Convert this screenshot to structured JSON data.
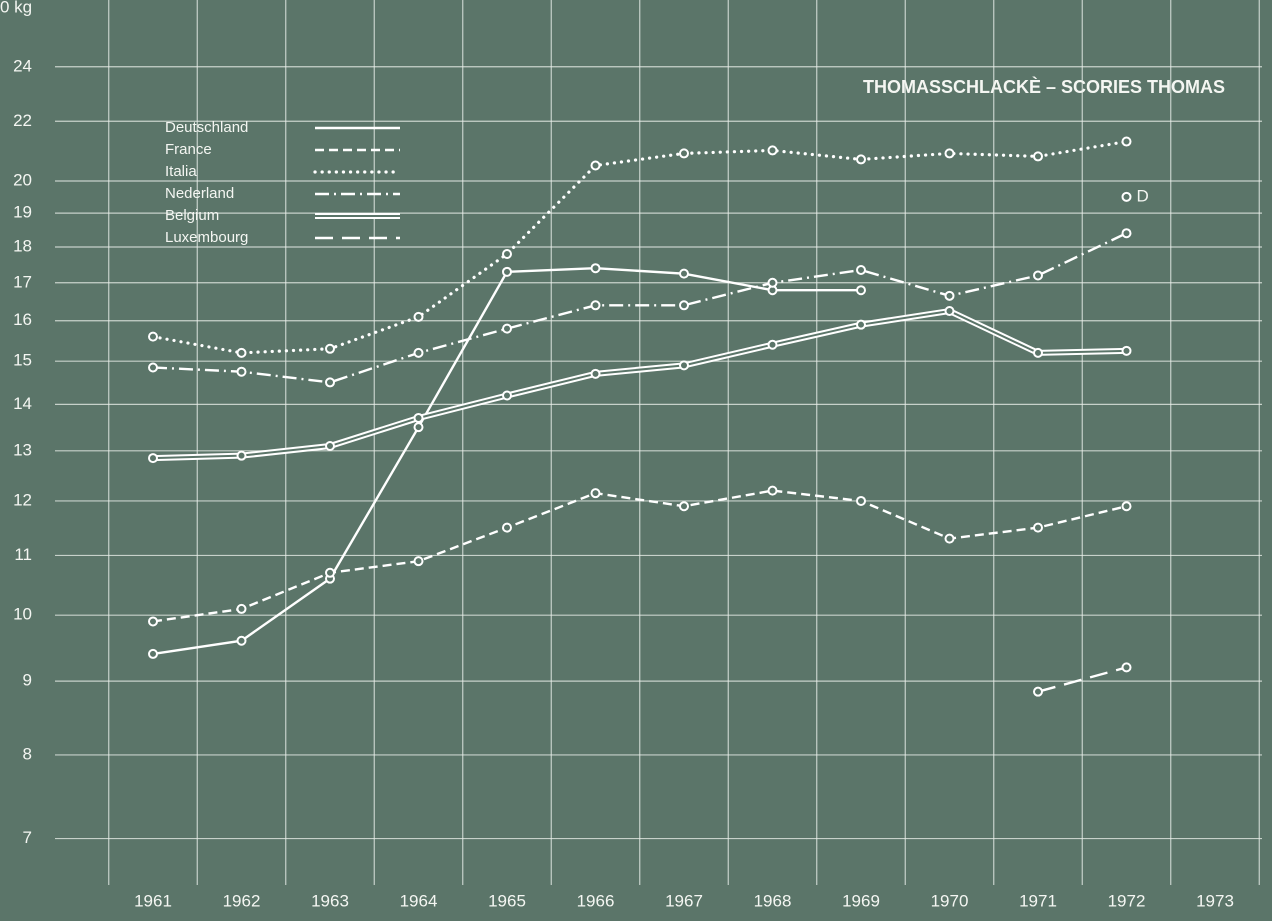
{
  "chart_data": {
    "type": "line",
    "title": "THOMASSCHLACKÈ – SCORIES THOMAS",
    "y_axis_label": "0 kg",
    "log_scale": true,
    "grid": true,
    "legend_position": "upper left",
    "categories": [
      "1961",
      "1962",
      "1963",
      "1964",
      "1965",
      "1966",
      "1967",
      "1968",
      "1969",
      "1970",
      "1971",
      "1972",
      "1973"
    ],
    "ylim": [
      6.5,
      26.7
    ],
    "yticks": [
      7,
      8,
      9,
      10,
      11,
      12,
      13,
      14,
      15,
      16,
      17,
      18,
      19,
      20,
      22,
      24
    ],
    "annotation": "D",
    "series": [
      {
        "name": "Deutschland",
        "color": "#ffffff",
        "dash": "solid",
        "values": [
          9.4,
          9.6,
          10.6,
          13.5,
          17.3,
          17.4,
          17.25,
          16.8,
          16.8,
          null,
          null,
          19.5,
          null
        ]
      },
      {
        "name": "France",
        "color": "#ffffff",
        "dash": "dashed",
        "values": [
          9.9,
          10.1,
          10.7,
          10.9,
          11.5,
          12.15,
          11.9,
          12.2,
          12.0,
          11.3,
          11.5,
          11.9,
          null
        ]
      },
      {
        "name": "Italia",
        "color": "#ffffff",
        "dash": "dotted",
        "values": [
          15.6,
          15.2,
          15.3,
          16.1,
          17.8,
          20.5,
          20.9,
          21.0,
          20.7,
          20.9,
          20.8,
          21.3,
          null
        ]
      },
      {
        "name": "Nederland",
        "color": "#ffffff",
        "dash": "dashdot",
        "values": [
          14.85,
          14.75,
          14.5,
          15.2,
          15.8,
          16.4,
          16.4,
          17.0,
          17.35,
          16.65,
          17.2,
          18.4,
          null
        ]
      },
      {
        "name": "Belgium",
        "color": "#ffffff",
        "dash": "double",
        "values": [
          12.85,
          12.9,
          13.1,
          13.7,
          14.2,
          14.7,
          14.9,
          15.4,
          15.9,
          16.25,
          15.2,
          15.25,
          null
        ]
      },
      {
        "name": "Luxembourg",
        "color": "#ffffff",
        "dash": "longdash",
        "values": [
          null,
          null,
          null,
          null,
          null,
          null,
          null,
          null,
          null,
          null,
          8.85,
          9.2,
          null
        ]
      }
    ]
  }
}
